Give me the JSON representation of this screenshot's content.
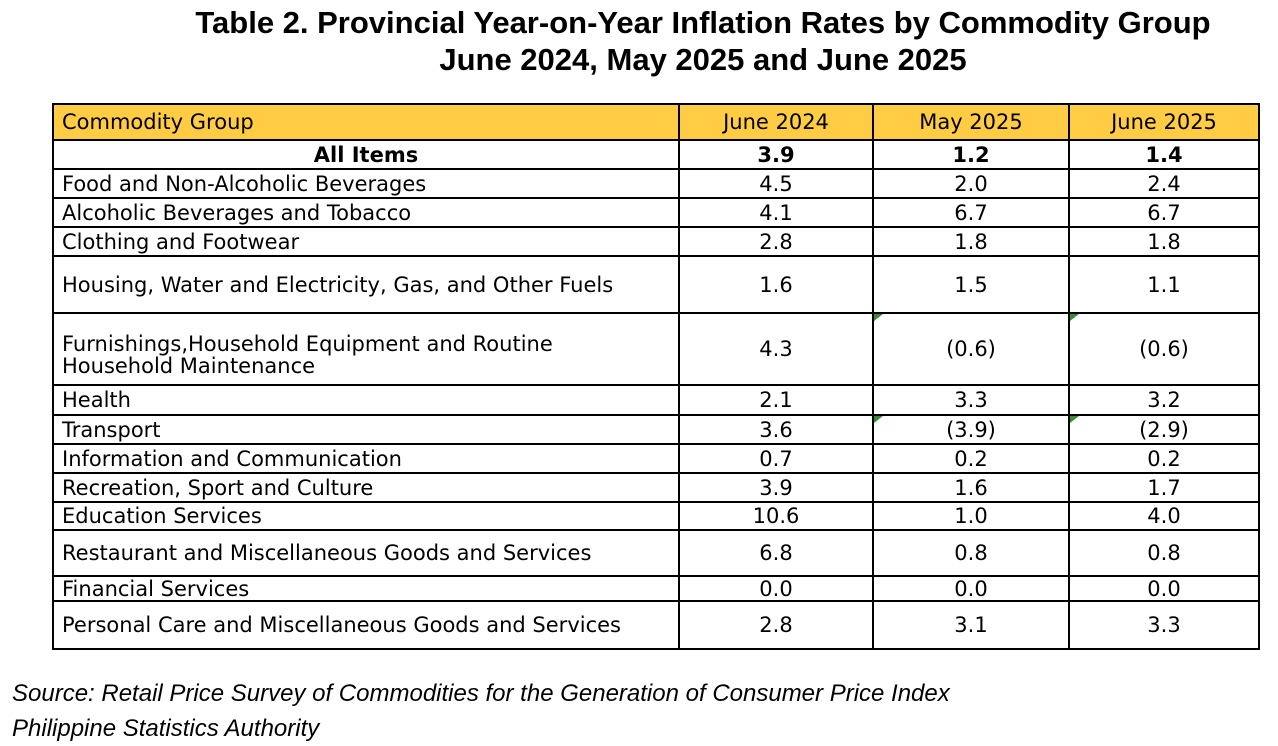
{
  "title": {
    "line1": "Table 2. Provincial Year-on-Year Inflation Rates by Commodity Group",
    "line2": "June 2024, May 2025 and June 2025"
  },
  "table": {
    "headers": [
      "Commodity Group",
      "June 2024",
      "May 2025",
      "June 2025"
    ],
    "rows": [
      {
        "name": "All Items",
        "v": [
          "3.9",
          "1.2",
          "1.4"
        ]
      },
      {
        "name": "Food and Non-Alcoholic Beverages",
        "v": [
          "4.5",
          "2.0",
          "2.4"
        ]
      },
      {
        "name": "Alcoholic Beverages and Tobacco",
        "v": [
          "4.1",
          "6.7",
          "6.7"
        ]
      },
      {
        "name": "Clothing and Footwear",
        "v": [
          "2.8",
          "1.8",
          "1.8"
        ]
      },
      {
        "name": "Housing, Water and Electricity, Gas, and Other Fuels",
        "v": [
          "1.6",
          "1.5",
          "1.1"
        ]
      },
      {
        "name": "Furnishings,Household Equipment and Routine Household Maintenance",
        "v": [
          "4.3",
          "(0.6)",
          "(0.6)"
        ]
      },
      {
        "name": "Health",
        "v": [
          "2.1",
          "3.3",
          "3.2"
        ]
      },
      {
        "name": "Transport",
        "v": [
          "3.6",
          "(3.9)",
          "(2.9)"
        ]
      },
      {
        "name": "Information and Communication",
        "v": [
          "0.7",
          "0.2",
          "0.2"
        ]
      },
      {
        "name": "Recreation, Sport and Culture",
        "v": [
          "3.9",
          "1.6",
          "1.7"
        ]
      },
      {
        "name": "Education Services",
        "v": [
          "10.6",
          "1.0",
          "4.0"
        ]
      },
      {
        "name": "Restaurant and Miscellaneous Goods and Services",
        "v": [
          "6.8",
          "0.8",
          "0.8"
        ]
      },
      {
        "name": "Financial Services",
        "v": [
          "0.0",
          "0.0",
          "0.0"
        ]
      },
      {
        "name": "Personal Care and Miscellaneous Goods and Services",
        "v": [
          "2.8",
          "3.1",
          "3.3"
        ]
      }
    ]
  },
  "source": {
    "line1": "Source: Retail Price Survey of Commodities for the Generation of Consumer Price Index",
    "line2": "Philippine Statistics Authority"
  },
  "colors": {
    "header_bg": "#ffcc44",
    "cell_flag": "#3a8a3a"
  }
}
